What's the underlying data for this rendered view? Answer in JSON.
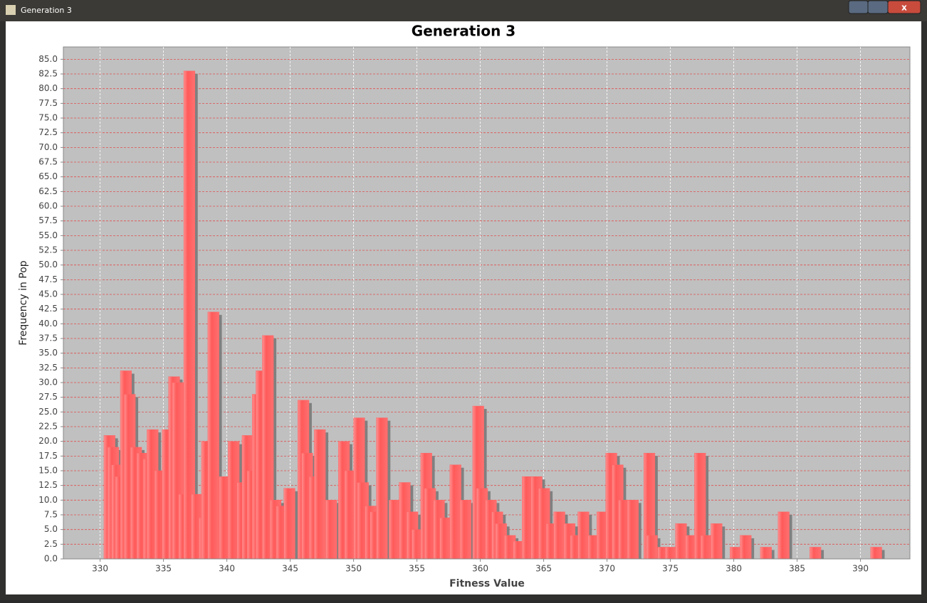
{
  "window_title": "Generation 3",
  "chart_data": {
    "type": "bar",
    "title": "Generation 3",
    "x_label": "Fitness Value",
    "y_label": "Frequency in Pop",
    "color": "#ff6464",
    "grid": true,
    "x": [
      330.3,
      330.6,
      330.9,
      331.2,
      331.6,
      331.9,
      332.4,
      332.9,
      333.4,
      333.7,
      334.3,
      334.9,
      335.4,
      335.7,
      336.2,
      336.6,
      337.2,
      337.8,
      338.0,
      338.5,
      339.4,
      340.1,
      340.8,
      341.2,
      341.6,
      342.0,
      342.3,
      342.8,
      343.4,
      343.9,
      344.5,
      345.6,
      345.9,
      346.5,
      346.9,
      347.8,
      348.8,
      349.3,
      350.0,
      350.3,
      350.9,
      351.3,
      351.8,
      352.8,
      353.6,
      354.2,
      354.6,
      355.3,
      355.6,
      356.3,
      356.8,
      357.6,
      358.4,
      359.4,
      359.7,
      360.4,
      360.9,
      361.2,
      361.9,
      362.6,
      363.3,
      364.0,
      364.6,
      365.2,
      365.8,
      366.6,
      367.1,
      367.7,
      368.5,
      369.2,
      369.9,
      370.4,
      370.9,
      371.6,
      372.9,
      373.1,
      374.0,
      374.6,
      375.4,
      376.2,
      376.9,
      377.4,
      378.2,
      379.7,
      380.5,
      382.1,
      383.5,
      386.0,
      390.8
    ],
    "values": [
      21,
      19,
      16,
      14,
      32,
      28,
      19,
      18,
      17,
      22,
      15,
      22,
      31,
      30,
      11,
      83,
      11,
      7,
      20,
      42,
      14,
      20,
      13,
      21,
      15,
      28,
      32,
      38,
      10,
      9,
      12,
      27,
      18,
      14,
      22,
      10,
      20,
      15,
      24,
      13,
      9,
      8,
      24,
      10,
      13,
      8,
      5,
      18,
      12,
      10,
      7,
      16,
      10,
      26,
      12,
      10,
      8,
      6,
      4,
      3,
      14,
      14,
      12,
      6,
      8,
      6,
      4,
      8,
      4,
      8,
      18,
      16,
      10,
      10,
      18,
      4,
      2,
      2,
      6,
      4,
      18,
      4,
      6,
      2,
      4,
      2,
      8,
      2,
      2
    ],
    "xlim": [
      327.1,
      393.9
    ],
    "ylim": [
      0,
      87.1
    ],
    "xticks": [
      330,
      335,
      340,
      345,
      350,
      355,
      360,
      365,
      370,
      375,
      380,
      385,
      390
    ],
    "yticks": [
      {
        "value": 0,
        "label": "0.0"
      },
      2.5,
      {
        "value": 5,
        "label": "5.0"
      },
      7.5,
      {
        "value": 10,
        "label": "10.0"
      },
      12.5,
      {
        "value": 15,
        "label": "15.0"
      },
      17.5,
      {
        "value": 20,
        "label": "20.0"
      },
      22.5,
      {
        "value": 25,
        "label": "25.0"
      },
      27.5,
      {
        "value": 30,
        "label": "30.0"
      },
      32.5,
      {
        "value": 35,
        "label": "35.0"
      },
      37.5,
      {
        "value": 40,
        "label": "40.0"
      },
      42.5,
      {
        "value": 45,
        "label": "45.0"
      },
      47.5,
      {
        "value": 50,
        "label": "50.0"
      },
      52.5,
      {
        "value": 55,
        "label": "55.0"
      },
      57.5,
      {
        "value": 60,
        "label": "60.0"
      },
      62.5,
      {
        "value": 65,
        "label": "65.0"
      },
      67.5,
      {
        "value": 70,
        "label": "70.0"
      },
      72.5,
      {
        "value": 75,
        "label": "75.0"
      },
      77.5,
      {
        "value": 80,
        "label": "80.0"
      },
      82.5,
      {
        "value": 85,
        "label": "85.0"
      }
    ]
  }
}
